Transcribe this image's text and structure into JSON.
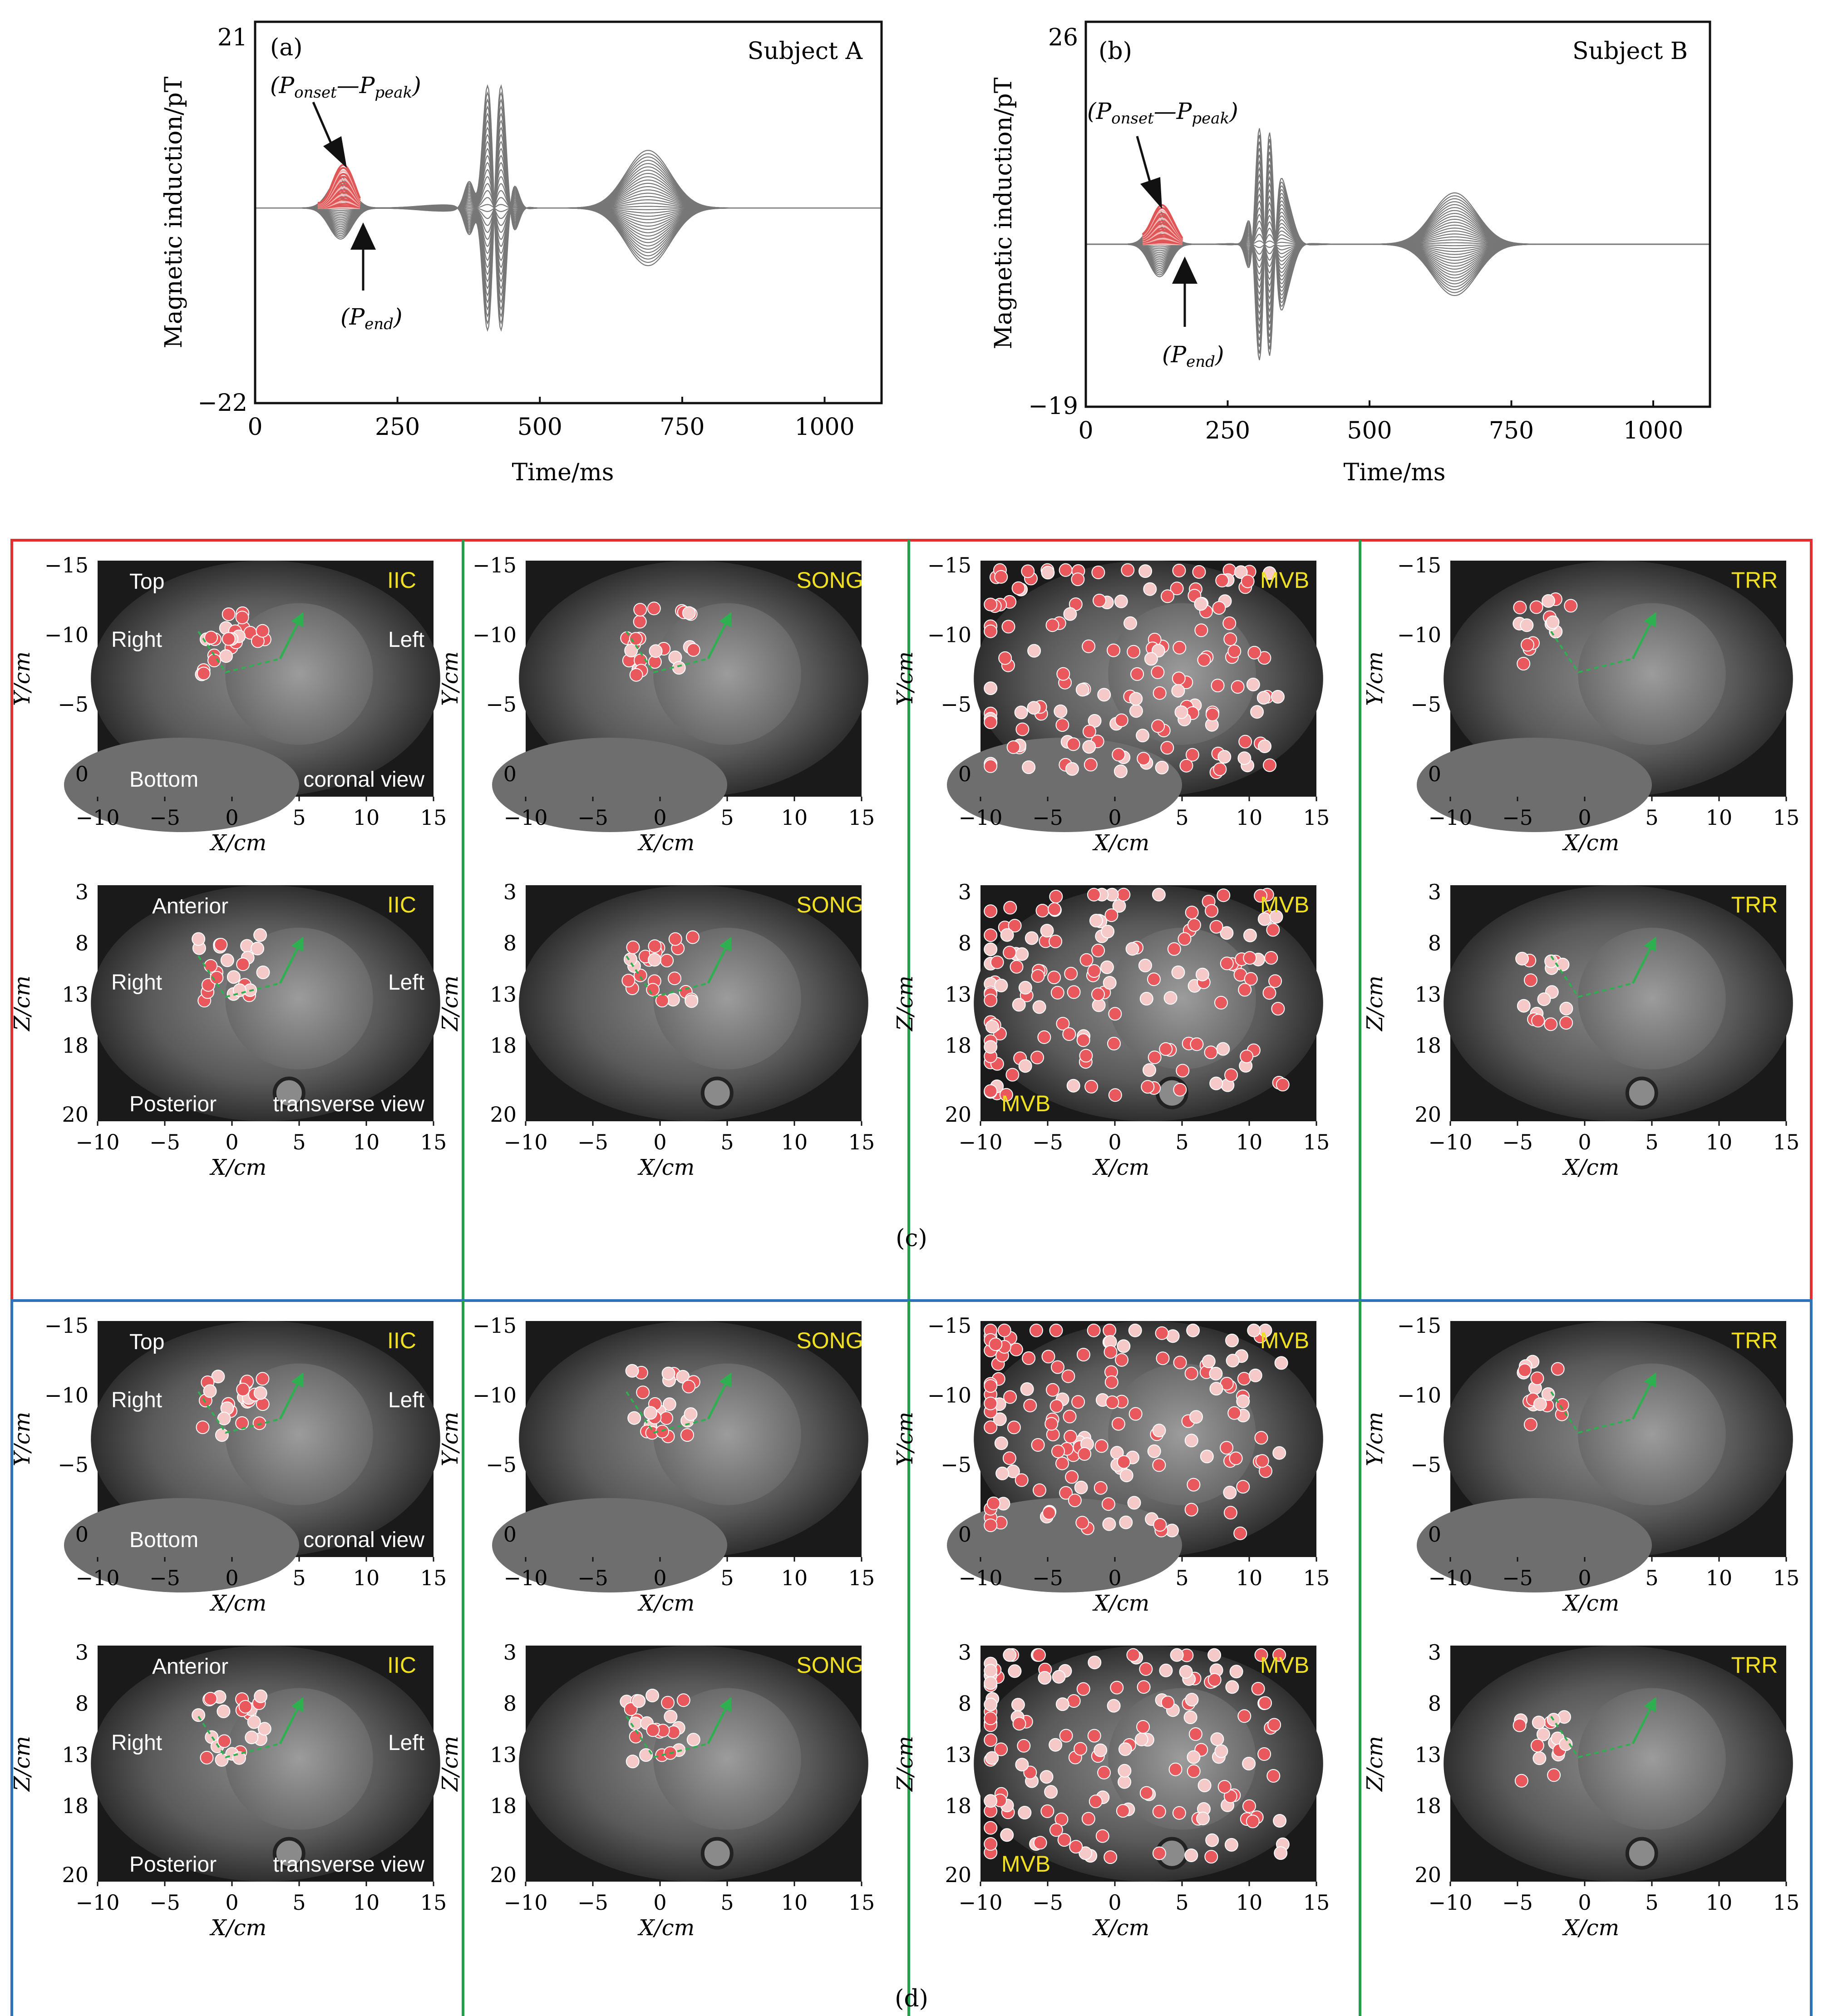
{
  "colors": {
    "trace": "#777777",
    "highlight": "#e05555",
    "dot": "#e8585c",
    "dot_light": "#f6c9c9",
    "arrow": "#2fb050",
    "label_yellow": "#f0e020",
    "frame_c": "#e03030",
    "frame_d": "#2f72b8",
    "divider": "#22a04a",
    "mri_bg": "#1a1a1a"
  },
  "chart_data": [
    {
      "type": "line",
      "panel": "(a)",
      "subject": "Subject A",
      "xlabel": "Time/ms",
      "ylabel": "Magnetic induction/pT",
      "xlim": [
        0,
        1100
      ],
      "xticks": [
        0,
        250,
        500,
        750,
        1000
      ],
      "ylim": [
        -22,
        21
      ],
      "ytick_labels": [
        "21",
        "−22"
      ],
      "annot_top": "(P",
      "annot_top_sub1": "onset",
      "annot_top_mid": "—P",
      "annot_top_sub2": "peak",
      "annot_top_end": ")",
      "annot_bottom": "(P",
      "annot_bottom_sub": "end",
      "annot_bottom_end": ")",
      "p_wave": [
        110,
        185
      ],
      "baseline": 0
    },
    {
      "type": "line",
      "panel": "(b)",
      "subject": "Subject B",
      "xlabel": "Time/ms",
      "ylabel": "Magnetic induction/pT",
      "xlim": [
        0,
        1100
      ],
      "xticks": [
        0,
        250,
        500,
        750,
        1000
      ],
      "ylim": [
        -19,
        26
      ],
      "ytick_labels": [
        "26",
        "−19"
      ],
      "annot_top": "(P",
      "annot_top_sub1": "onset",
      "annot_top_mid": "—P",
      "annot_top_sub2": "peak",
      "annot_top_end": ")",
      "annot_bottom": "(P",
      "annot_bottom_sub": "end",
      "annot_bottom_end": ")",
      "p_wave": [
        100,
        170
      ],
      "baseline": 0
    }
  ],
  "maps": {
    "xlabel": "X/cm",
    "ylabel_coronal": "Y/cm",
    "ylabel_transverse": "Z/cm",
    "xticks": [
      "−10",
      "−5",
      "0",
      "5",
      "10",
      "15"
    ],
    "yticks_coronal": [
      "−15",
      "−10",
      "−5",
      "0"
    ],
    "yticks_transverse": [
      "3",
      "8",
      "13",
      "18",
      "20"
    ],
    "methods": [
      "IIC",
      "SONG",
      "MVB",
      "TRR"
    ],
    "orient_coronal": {
      "top": "Top",
      "right": "Right",
      "left": "Left",
      "bottom": "Bottom",
      "view": "coronal view"
    },
    "orient_transverse": {
      "top": "Anterior",
      "right": "Right",
      "left": "Left",
      "bottom": "Posterior",
      "view": "transverse view"
    }
  },
  "captions": {
    "c": "(c)",
    "d": "(d)"
  }
}
